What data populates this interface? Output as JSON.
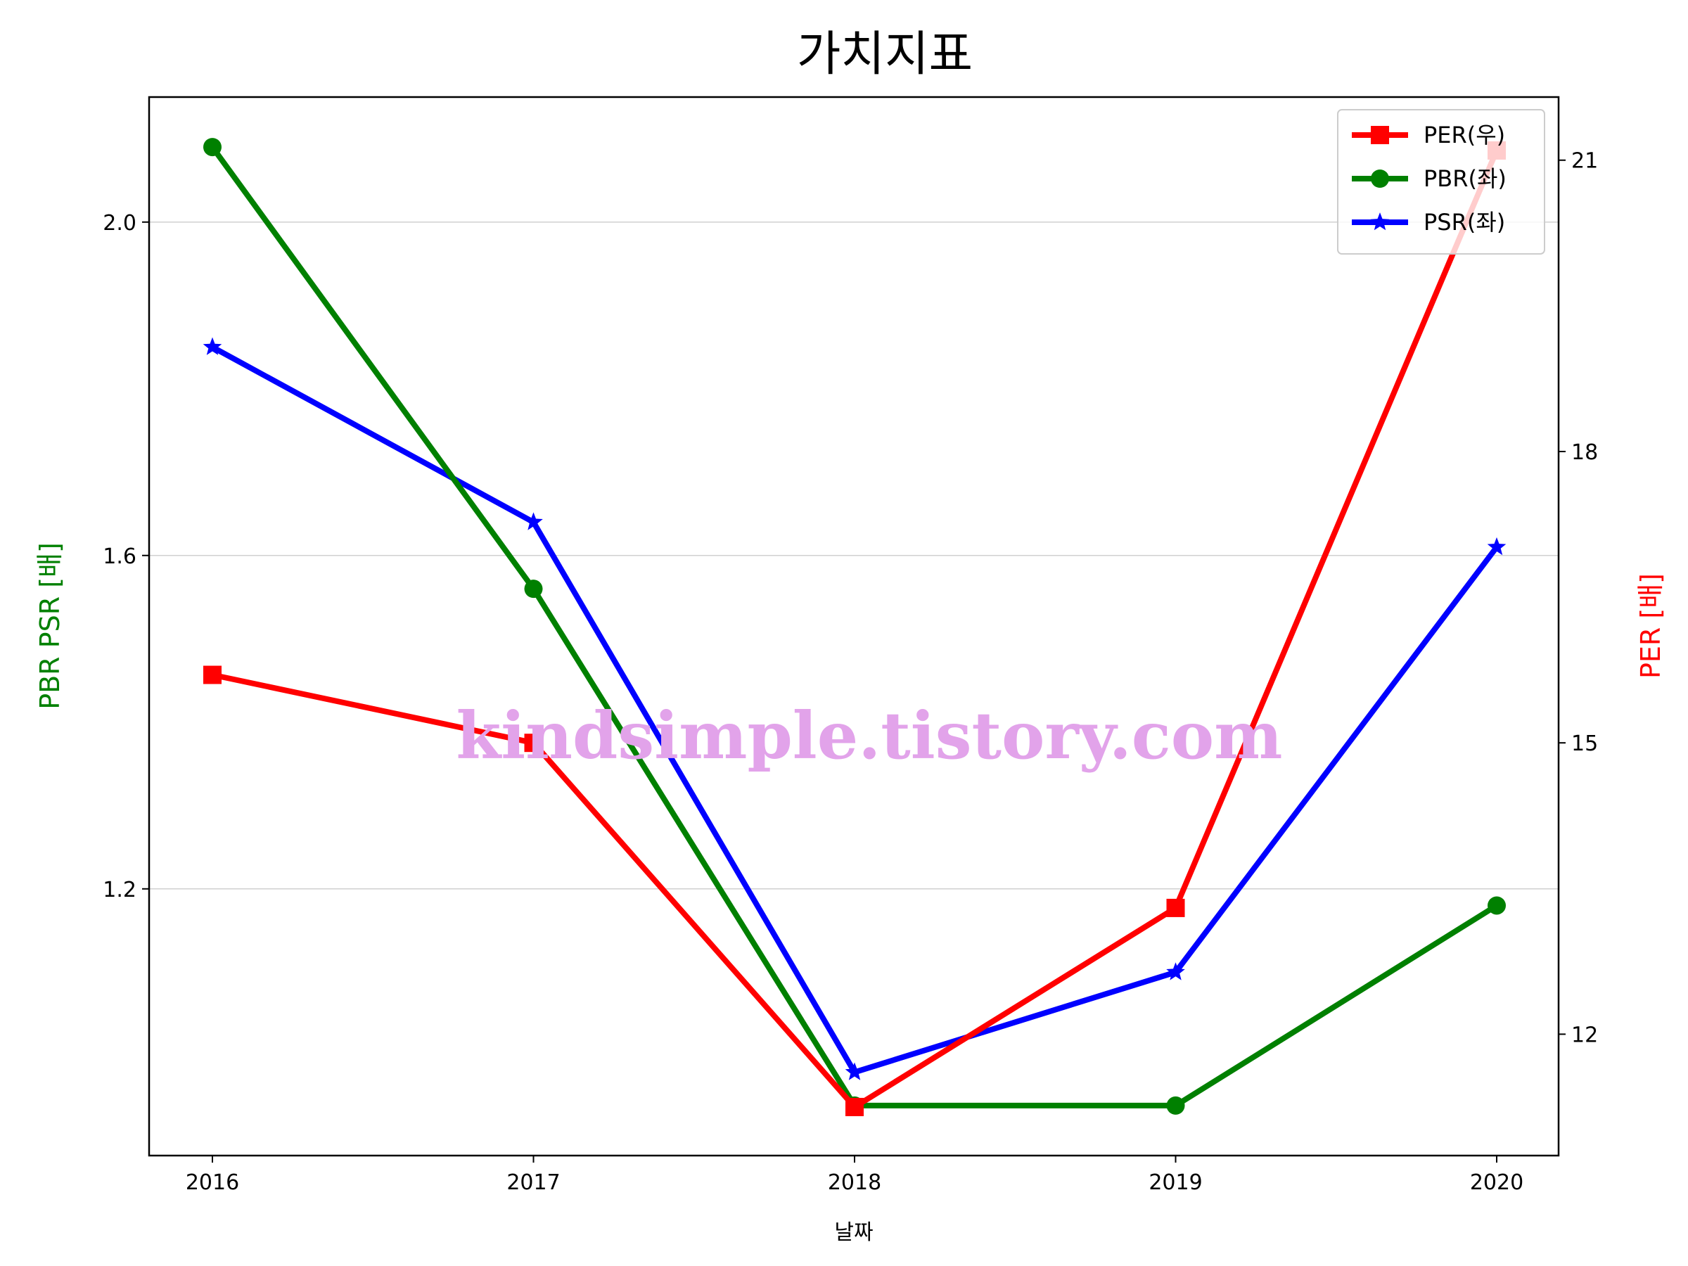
{
  "chart_data": {
    "type": "line",
    "title": "가치지표",
    "xlabel": "날짜",
    "ylabel_left": "PBR PSR [배]",
    "ylabel_right": "PER [배]",
    "categories": [
      "2016",
      "2017",
      "2018",
      "2019",
      "2020"
    ],
    "ylim_left": [
      0.88,
      2.15
    ],
    "ylim_right": [
      10.75,
      21.65
    ],
    "yticks_left": [
      "1.2",
      "1.6",
      "2.0"
    ],
    "yticks_right": [
      "12",
      "15",
      "18",
      "21"
    ],
    "grid": "horizontal (left axis)",
    "legend_position": "top-right",
    "series": [
      {
        "name": "PER(우)",
        "axis": "right",
        "color": "#ff0000",
        "marker": "square",
        "values": [
          15.7,
          15.0,
          11.25,
          13.3,
          21.1
        ]
      },
      {
        "name": "PBR(좌)",
        "axis": "left",
        "color": "#008000",
        "marker": "circle",
        "values": [
          2.09,
          1.56,
          0.94,
          0.94,
          1.18
        ]
      },
      {
        "name": "PSR(좌)",
        "axis": "left",
        "color": "#0000ff",
        "marker": "star",
        "values": [
          1.85,
          1.64,
          0.98,
          1.1,
          1.61
        ]
      }
    ]
  },
  "watermark": "kindsimple.tistory.com"
}
